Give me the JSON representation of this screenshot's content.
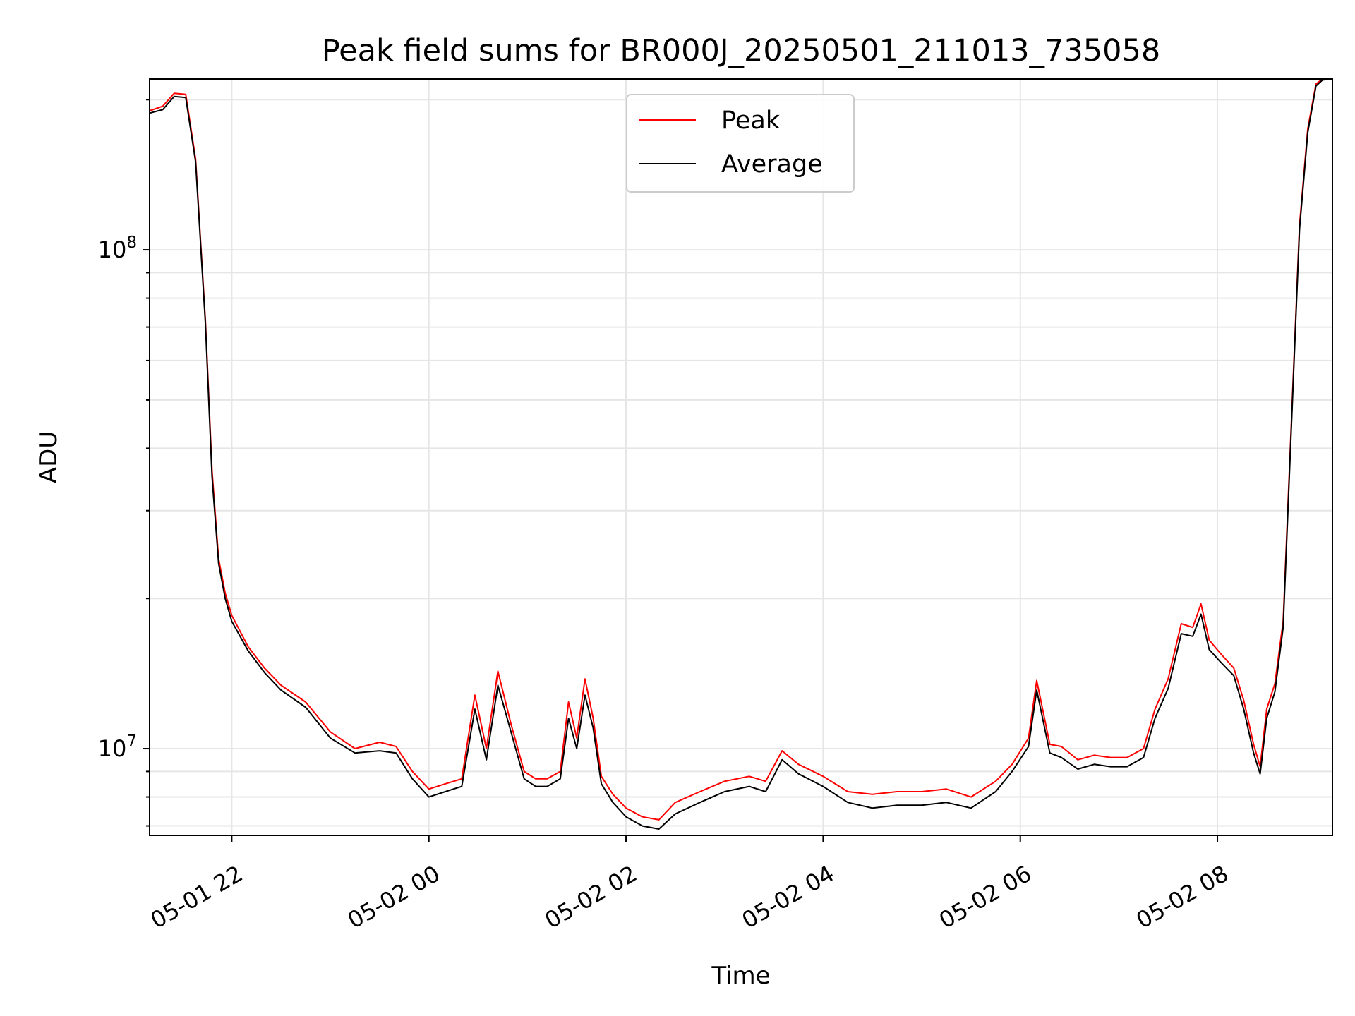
{
  "chart_data": {
    "type": "line",
    "title": "Peak field sums for BR000J_20250501_211013_735058",
    "xlabel": "Time",
    "ylabel": "ADU",
    "y_scale": "log",
    "xlim": [
      "2025-05-01 21:10",
      "2025-05-02 09:10"
    ],
    "ylim": [
      6700000,
      220000000
    ],
    "grid": true,
    "legend_position": "upper-center",
    "x_ticks": [
      {
        "value": "2025-05-01 22:00",
        "label": "05-01 22"
      },
      {
        "value": "2025-05-02 00:00",
        "label": "05-02 00"
      },
      {
        "value": "2025-05-02 02:00",
        "label": "05-02 02"
      },
      {
        "value": "2025-05-02 04:00",
        "label": "05-02 04"
      },
      {
        "value": "2025-05-02 06:00",
        "label": "05-02 06"
      },
      {
        "value": "2025-05-02 08:00",
        "label": "05-02 08"
      }
    ],
    "y_ticks": [
      {
        "value": 10000000,
        "base": "10",
        "exp": "7"
      },
      {
        "value": 100000000,
        "base": "10",
        "exp": "8"
      }
    ],
    "series": [
      {
        "name": "Peak",
        "color": "#ff0000",
        "x": [
          "2025-05-01 21:10",
          "2025-05-01 21:18",
          "2025-05-01 21:25",
          "2025-05-01 21:32",
          "2025-05-01 21:38",
          "2025-05-01 21:44",
          "2025-05-01 21:48",
          "2025-05-01 21:52",
          "2025-05-01 21:56",
          "2025-05-01 22:00",
          "2025-05-01 22:10",
          "2025-05-01 22:20",
          "2025-05-01 22:30",
          "2025-05-01 22:45",
          "2025-05-01 23:00",
          "2025-05-01 23:15",
          "2025-05-01 23:30",
          "2025-05-01 23:40",
          "2025-05-01 23:50",
          "2025-05-02 00:00",
          "2025-05-02 00:10",
          "2025-05-02 00:20",
          "2025-05-02 00:28",
          "2025-05-02 00:35",
          "2025-05-02 00:42",
          "2025-05-02 00:50",
          "2025-05-02 00:58",
          "2025-05-02 01:05",
          "2025-05-02 01:12",
          "2025-05-02 01:20",
          "2025-05-02 01:25",
          "2025-05-02 01:30",
          "2025-05-02 01:35",
          "2025-05-02 01:40",
          "2025-05-02 01:45",
          "2025-05-02 01:52",
          "2025-05-02 02:00",
          "2025-05-02 02:10",
          "2025-05-02 02:20",
          "2025-05-02 02:30",
          "2025-05-02 02:45",
          "2025-05-02 03:00",
          "2025-05-02 03:15",
          "2025-05-02 03:25",
          "2025-05-02 03:35",
          "2025-05-02 03:45",
          "2025-05-02 04:00",
          "2025-05-02 04:15",
          "2025-05-02 04:30",
          "2025-05-02 04:45",
          "2025-05-02 05:00",
          "2025-05-02 05:15",
          "2025-05-02 05:30",
          "2025-05-02 05:45",
          "2025-05-02 05:55",
          "2025-05-02 06:05",
          "2025-05-02 06:10",
          "2025-05-02 06:18",
          "2025-05-02 06:25",
          "2025-05-02 06:35",
          "2025-05-02 06:45",
          "2025-05-02 06:55",
          "2025-05-02 07:05",
          "2025-05-02 07:15",
          "2025-05-02 07:22",
          "2025-05-02 07:30",
          "2025-05-02 07:38",
          "2025-05-02 07:45",
          "2025-05-02 07:50",
          "2025-05-02 07:55",
          "2025-05-02 08:02",
          "2025-05-02 08:10",
          "2025-05-02 08:16",
          "2025-05-02 08:22",
          "2025-05-02 08:26",
          "2025-05-02 08:30",
          "2025-05-02 08:35",
          "2025-05-02 08:40",
          "2025-05-02 08:45",
          "2025-05-02 08:50",
          "2025-05-02 08:55",
          "2025-05-02 09:00",
          "2025-05-02 09:04",
          "2025-05-02 09:10"
        ],
        "y": [
          190000000,
          194000000,
          206000000,
          205000000,
          152000000,
          72000000,
          36000000,
          24000000,
          20500000,
          18500000,
          16000000,
          14500000,
          13400000,
          12400000,
          10800000,
          10000000,
          10300000,
          10100000,
          9000000,
          8300000,
          8500000,
          8700000,
          12800000,
          10000000,
          14300000,
          11200000,
          9000000,
          8700000,
          8700000,
          9000000,
          12400000,
          10500000,
          13800000,
          11500000,
          8800000,
          8100000,
          7600000,
          7300000,
          7200000,
          7800000,
          8200000,
          8600000,
          8800000,
          8600000,
          9900000,
          9300000,
          8800000,
          8200000,
          8100000,
          8200000,
          8200000,
          8300000,
          8000000,
          8600000,
          9300000,
          10500000,
          13700000,
          10200000,
          10100000,
          9500000,
          9700000,
          9600000,
          9600000,
          10000000,
          12000000,
          13800000,
          17800000,
          17500000,
          19500000,
          16500000,
          15500000,
          14500000,
          12500000,
          10200000,
          9200000,
          12000000,
          13500000,
          18000000,
          45000000,
          112000000,
          175000000,
          215000000,
          220000000,
          220000000
        ]
      },
      {
        "name": "Average",
        "color": "#000000",
        "x": [
          "2025-05-01 21:10",
          "2025-05-01 21:18",
          "2025-05-01 21:25",
          "2025-05-01 21:32",
          "2025-05-01 21:38",
          "2025-05-01 21:44",
          "2025-05-01 21:48",
          "2025-05-01 21:52",
          "2025-05-01 21:56",
          "2025-05-01 22:00",
          "2025-05-01 22:10",
          "2025-05-01 22:20",
          "2025-05-01 22:30",
          "2025-05-01 22:45",
          "2025-05-01 23:00",
          "2025-05-01 23:15",
          "2025-05-01 23:30",
          "2025-05-01 23:40",
          "2025-05-01 23:50",
          "2025-05-02 00:00",
          "2025-05-02 00:10",
          "2025-05-02 00:20",
          "2025-05-02 00:28",
          "2025-05-02 00:35",
          "2025-05-02 00:42",
          "2025-05-02 00:50",
          "2025-05-02 00:58",
          "2025-05-02 01:05",
          "2025-05-02 01:12",
          "2025-05-02 01:20",
          "2025-05-02 01:25",
          "2025-05-02 01:30",
          "2025-05-02 01:35",
          "2025-05-02 01:40",
          "2025-05-02 01:45",
          "2025-05-02 01:52",
          "2025-05-02 02:00",
          "2025-05-02 02:10",
          "2025-05-02 02:20",
          "2025-05-02 02:30",
          "2025-05-02 02:45",
          "2025-05-02 03:00",
          "2025-05-02 03:15",
          "2025-05-02 03:25",
          "2025-05-02 03:35",
          "2025-05-02 03:45",
          "2025-05-02 04:00",
          "2025-05-02 04:15",
          "2025-05-02 04:30",
          "2025-05-02 04:45",
          "2025-05-02 05:00",
          "2025-05-02 05:15",
          "2025-05-02 05:30",
          "2025-05-02 05:45",
          "2025-05-02 05:55",
          "2025-05-02 06:05",
          "2025-05-02 06:10",
          "2025-05-02 06:18",
          "2025-05-02 06:25",
          "2025-05-02 06:35",
          "2025-05-02 06:45",
          "2025-05-02 06:55",
          "2025-05-02 07:05",
          "2025-05-02 07:15",
          "2025-05-02 07:22",
          "2025-05-02 07:30",
          "2025-05-02 07:38",
          "2025-05-02 07:45",
          "2025-05-02 07:50",
          "2025-05-02 07:55",
          "2025-05-02 08:02",
          "2025-05-02 08:10",
          "2025-05-02 08:16",
          "2025-05-02 08:22",
          "2025-05-02 08:26",
          "2025-05-02 08:30",
          "2025-05-02 08:35",
          "2025-05-02 08:40",
          "2025-05-02 08:45",
          "2025-05-02 08:50",
          "2025-05-02 08:55",
          "2025-05-02 09:00",
          "2025-05-02 09:04",
          "2025-05-02 09:10"
        ],
        "y": [
          188000000,
          191000000,
          203000000,
          202000000,
          150000000,
          71000000,
          35000000,
          23500000,
          20000000,
          18000000,
          15700000,
          14200000,
          13100000,
          12100000,
          10500000,
          9800000,
          9900000,
          9800000,
          8700000,
          8000000,
          8200000,
          8400000,
          12000000,
          9500000,
          13400000,
          10800000,
          8700000,
          8400000,
          8400000,
          8700000,
          11500000,
          10000000,
          12800000,
          11000000,
          8500000,
          7800000,
          7300000,
          7000000,
          6900000,
          7400000,
          7800000,
          8200000,
          8400000,
          8200000,
          9500000,
          8900000,
          8400000,
          7800000,
          7600000,
          7700000,
          7700000,
          7800000,
          7600000,
          8200000,
          9000000,
          10100000,
          13100000,
          9800000,
          9600000,
          9100000,
          9300000,
          9200000,
          9200000,
          9600000,
          11500000,
          13200000,
          17000000,
          16800000,
          18600000,
          15800000,
          14900000,
          14000000,
          12000000,
          9800000,
          8900000,
          11500000,
          13000000,
          17500000,
          44000000,
          110000000,
          172000000,
          213000000,
          219000000,
          220000000
        ]
      }
    ]
  }
}
